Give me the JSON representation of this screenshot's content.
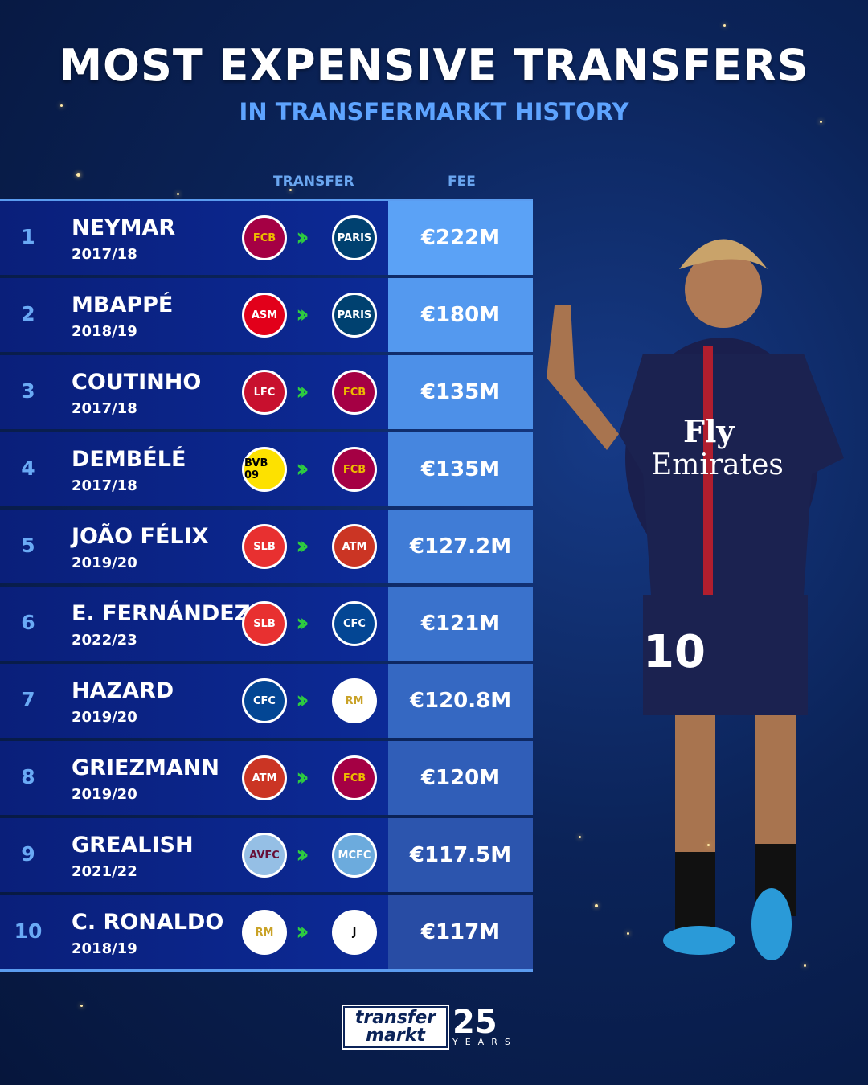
{
  "header": {
    "title": "MOST EXPENSIVE TRANSFERS",
    "subtitle": "IN TRANSFERMARKT HISTORY"
  },
  "columns": {
    "transfer": "TRANSFER",
    "fee": "FEE"
  },
  "rows": [
    {
      "rank": "1",
      "name": "NEYMAR",
      "season": "2017/18",
      "from_icon": "fc-barcelona-crest-icon",
      "to_icon": "psg-crest-icon",
      "fee": "€222M",
      "fee_color": "#5ba2f6"
    },
    {
      "rank": "2",
      "name": "MBAPPÉ",
      "season": "2018/19",
      "from_icon": "as-monaco-crest-icon",
      "to_icon": "psg-crest-icon",
      "fee": "€180M",
      "fee_color": "#5499ef"
    },
    {
      "rank": "3",
      "name": "COUTINHO",
      "season": "2017/18",
      "from_icon": "liverpool-crest-icon",
      "to_icon": "fc-barcelona-crest-icon",
      "fee": "€135M",
      "fee_color": "#4d90e8"
    },
    {
      "rank": "4",
      "name": "DEMBÉLÉ",
      "season": "2017/18",
      "from_icon": "bvb-crest-icon",
      "to_icon": "fc-barcelona-crest-icon",
      "fee": "€135M",
      "fee_color": "#4686df"
    },
    {
      "rank": "5",
      "name": "JOÃO FÉLIX",
      "season": "2019/20",
      "from_icon": "benfica-crest-icon",
      "to_icon": "atletico-madrid-crest-icon",
      "fee": "€127.2M",
      "fee_color": "#407cd6"
    },
    {
      "rank": "6",
      "name": "E. FERNÁNDEZ",
      "season": "2022/23",
      "from_icon": "benfica-crest-icon",
      "to_icon": "chelsea-crest-icon",
      "fee": "€121M",
      "fee_color": "#3a72cc"
    },
    {
      "rank": "7",
      "name": "HAZARD",
      "season": "2019/20",
      "from_icon": "chelsea-crest-icon",
      "to_icon": "real-madrid-crest-icon",
      "fee": "€120.8M",
      "fee_color": "#3568c2"
    },
    {
      "rank": "8",
      "name": "GRIEZMANN",
      "season": "2019/20",
      "from_icon": "atletico-madrid-crest-icon",
      "to_icon": "fc-barcelona-crest-icon",
      "fee": "€120M",
      "fee_color": "#305eb8"
    },
    {
      "rank": "9",
      "name": "GREALISH",
      "season": "2021/22",
      "from_icon": "aston-villa-crest-icon",
      "to_icon": "manchester-city-crest-icon",
      "fee": "€117.5M",
      "fee_color": "#2c55ae"
    },
    {
      "rank": "10",
      "name": "C. RONALDO",
      "season": "2018/19",
      "from_icon": "real-madrid-crest-icon",
      "to_icon": "juventus-crest-icon",
      "fee": "€117M",
      "fee_color": "#284ca4"
    }
  ],
  "crests": {
    "fc-barcelona-crest-icon": {
      "bg": "#a50044",
      "fg": "#edbb00",
      "label": "FCB"
    },
    "psg-crest-icon": {
      "bg": "#004170",
      "fg": "#fff",
      "label": "PARIS"
    },
    "as-monaco-crest-icon": {
      "bg": "#e2001a",
      "fg": "#fff",
      "label": "ASM"
    },
    "liverpool-crest-icon": {
      "bg": "#c8102e",
      "fg": "#fff",
      "label": "LFC"
    },
    "bvb-crest-icon": {
      "bg": "#fde100",
      "fg": "#000",
      "label": "BVB 09"
    },
    "benfica-crest-icon": {
      "bg": "#e83030",
      "fg": "#fff",
      "label": "SLB"
    },
    "atletico-madrid-crest-icon": {
      "bg": "#cb3524",
      "fg": "#fff",
      "label": "ATM"
    },
    "chelsea-crest-icon": {
      "bg": "#034694",
      "fg": "#fff",
      "label": "CFC"
    },
    "real-madrid-crest-icon": {
      "bg": "#ffffff",
      "fg": "#c9a227",
      "label": "RM"
    },
    "aston-villa-crest-icon": {
      "bg": "#95bfe5",
      "fg": "#670e36",
      "label": "AVFC"
    },
    "manchester-city-crest-icon": {
      "bg": "#6cabdd",
      "fg": "#fff",
      "label": "MCFC"
    },
    "juventus-crest-icon": {
      "bg": "#ffffff",
      "fg": "#000",
      "label": "J"
    }
  },
  "logo": {
    "brand_top": "transfer",
    "brand_bottom": "markt",
    "anniversary": "25",
    "years": "YEARS",
    "gold": "#c9963a"
  },
  "colors": {
    "background": "#0b2358",
    "accent": "#5ea4ff",
    "arrow": "#2ecc40"
  }
}
